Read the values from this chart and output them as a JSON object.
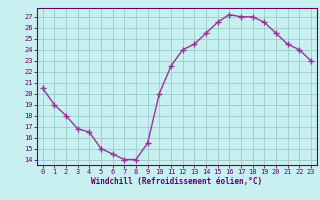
{
  "x": [
    0,
    1,
    2,
    3,
    4,
    5,
    6,
    7,
    8,
    9,
    10,
    11,
    12,
    13,
    14,
    15,
    16,
    17,
    18,
    19,
    20,
    21,
    22,
    23
  ],
  "y": [
    20.5,
    19.0,
    18.0,
    16.8,
    16.5,
    15.0,
    14.5,
    14.0,
    14.0,
    15.5,
    20.0,
    22.5,
    24.0,
    24.5,
    25.5,
    26.5,
    27.2,
    27.0,
    27.0,
    26.5,
    25.5,
    24.5,
    24.0,
    23.0
  ],
  "line_color": "#993399",
  "marker": "+",
  "marker_size": 4,
  "marker_lw": 1.0,
  "bg_color": "#c8f0f0",
  "grid_color": "#99cccc",
  "xlabel": "Windchill (Refroidissement éolien,°C)",
  "ylabel_ticks": [
    14,
    15,
    16,
    17,
    18,
    19,
    20,
    21,
    22,
    23,
    24,
    25,
    26,
    27
  ],
  "ylim": [
    13.5,
    27.8
  ],
  "xlim": [
    -0.5,
    23.5
  ],
  "xticks": [
    0,
    1,
    2,
    3,
    4,
    5,
    6,
    7,
    8,
    9,
    10,
    11,
    12,
    13,
    14,
    15,
    16,
    17,
    18,
    19,
    20,
    21,
    22,
    23
  ],
  "label_color": "#660066",
  "tick_color": "#660066",
  "axis_color": "#660066",
  "line_width": 1.0,
  "tick_fontsize": 5.0,
  "xlabel_fontsize": 5.5
}
